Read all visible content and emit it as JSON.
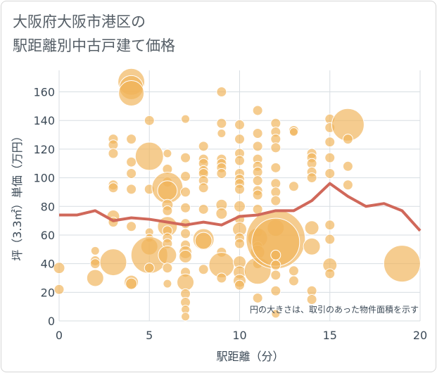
{
  "title_line1": "大阪府大阪市港区の",
  "title_line2": "駅距離別中古戸建て価格",
  "chart_data": {
    "type": "scatter",
    "xlabel": "駅距離（分）",
    "ylabel": "坪（3.3㎡）単価（万円）",
    "xlim": [
      0,
      20
    ],
    "ylim": [
      0,
      175
    ],
    "x_ticks": [
      0,
      5,
      10,
      15,
      20
    ],
    "y_ticks": [
      0,
      20,
      40,
      60,
      80,
      100,
      120,
      140,
      160
    ],
    "grid": true,
    "annotation": "円の大きさは、取引のあった物件面積を示す",
    "colors": {
      "bubble": "#f0b45a",
      "line": "#d0685a",
      "grid": "#d7dde2"
    },
    "bubbles": [
      {
        "x": 0,
        "y": 37,
        "s": 8
      },
      {
        "x": 0,
        "y": 22,
        "s": 7
      },
      {
        "x": 2,
        "y": 49,
        "s": 6
      },
      {
        "x": 2,
        "y": 42,
        "s": 7
      },
      {
        "x": 2,
        "y": 40,
        "s": 7
      },
      {
        "x": 2,
        "y": 30,
        "s": 12
      },
      {
        "x": 3,
        "y": 127,
        "s": 7
      },
      {
        "x": 3,
        "y": 123,
        "s": 7
      },
      {
        "x": 3,
        "y": 117,
        "s": 7
      },
      {
        "x": 3,
        "y": 95,
        "s": 7
      },
      {
        "x": 3,
        "y": 93,
        "s": 7
      },
      {
        "x": 3,
        "y": 73,
        "s": 9
      },
      {
        "x": 3,
        "y": 69,
        "s": 7
      },
      {
        "x": 3,
        "y": 41,
        "s": 19
      },
      {
        "x": 4,
        "y": 167,
        "s": 19
      },
      {
        "x": 4,
        "y": 163,
        "s": 17
      },
      {
        "x": 4,
        "y": 159,
        "s": 18
      },
      {
        "x": 4,
        "y": 127,
        "s": 7
      },
      {
        "x": 4,
        "y": 111,
        "s": 7
      },
      {
        "x": 4,
        "y": 103,
        "s": 7
      },
      {
        "x": 4,
        "y": 92,
        "s": 7
      },
      {
        "x": 4,
        "y": 66,
        "s": 7
      },
      {
        "x": 4,
        "y": 27,
        "s": 10
      },
      {
        "x": 4,
        "y": 26,
        "s": 8
      },
      {
        "x": 5,
        "y": 140,
        "s": 7
      },
      {
        "x": 5,
        "y": 115,
        "s": 20
      },
      {
        "x": 5,
        "y": 92,
        "s": 7
      },
      {
        "x": 5,
        "y": 62,
        "s": 6
      },
      {
        "x": 5,
        "y": 58,
        "s": 6
      },
      {
        "x": 5,
        "y": 52,
        "s": 12
      },
      {
        "x": 5,
        "y": 46,
        "s": 26
      },
      {
        "x": 5,
        "y": 37,
        "s": 7
      },
      {
        "x": 6,
        "y": 117,
        "s": 6
      },
      {
        "x": 6,
        "y": 106,
        "s": 7
      },
      {
        "x": 6,
        "y": 97,
        "s": 7
      },
      {
        "x": 6,
        "y": 93,
        "s": 22
      },
      {
        "x": 6,
        "y": 91,
        "s": 14
      },
      {
        "x": 6,
        "y": 81,
        "s": 8
      },
      {
        "x": 6,
        "y": 77,
        "s": 7
      },
      {
        "x": 6,
        "y": 66,
        "s": 14
      },
      {
        "x": 6,
        "y": 63,
        "s": 7
      },
      {
        "x": 6,
        "y": 58,
        "s": 7
      },
      {
        "x": 6,
        "y": 54,
        "s": 7
      },
      {
        "x": 6,
        "y": 46,
        "s": 13
      },
      {
        "x": 6,
        "y": 37,
        "s": 7
      },
      {
        "x": 6,
        "y": 26,
        "s": 6
      },
      {
        "x": 7,
        "y": 141,
        "s": 6
      },
      {
        "x": 7,
        "y": 114,
        "s": 7
      },
      {
        "x": 7,
        "y": 101,
        "s": 7
      },
      {
        "x": 7,
        "y": 90,
        "s": 7
      },
      {
        "x": 7,
        "y": 79,
        "s": 7
      },
      {
        "x": 7,
        "y": 68,
        "s": 7
      },
      {
        "x": 7,
        "y": 61,
        "s": 7
      },
      {
        "x": 7,
        "y": 53,
        "s": 7
      },
      {
        "x": 7,
        "y": 48,
        "s": 9
      },
      {
        "x": 7,
        "y": 45,
        "s": 9
      },
      {
        "x": 7,
        "y": 34,
        "s": 7
      },
      {
        "x": 7,
        "y": 27,
        "s": 12
      },
      {
        "x": 7,
        "y": 19,
        "s": 7
      },
      {
        "x": 7,
        "y": 13,
        "s": 7
      },
      {
        "x": 7,
        "y": 8,
        "s": 6
      },
      {
        "x": 7,
        "y": 3,
        "s": 6
      },
      {
        "x": 8,
        "y": 122,
        "s": 7
      },
      {
        "x": 8,
        "y": 113,
        "s": 7
      },
      {
        "x": 8,
        "y": 110,
        "s": 7
      },
      {
        "x": 8,
        "y": 105,
        "s": 7
      },
      {
        "x": 8,
        "y": 103,
        "s": 7
      },
      {
        "x": 8,
        "y": 98,
        "s": 7
      },
      {
        "x": 8,
        "y": 93,
        "s": 7
      },
      {
        "x": 8,
        "y": 78,
        "s": 7
      },
      {
        "x": 8,
        "y": 57,
        "s": 15
      },
      {
        "x": 8,
        "y": 56,
        "s": 12
      },
      {
        "x": 8,
        "y": 36,
        "s": 7
      },
      {
        "x": 9,
        "y": 160,
        "s": 7
      },
      {
        "x": 9,
        "y": 138,
        "s": 7
      },
      {
        "x": 9,
        "y": 131,
        "s": 6
      },
      {
        "x": 9,
        "y": 113,
        "s": 7
      },
      {
        "x": 9,
        "y": 110,
        "s": 7
      },
      {
        "x": 9,
        "y": 107,
        "s": 7
      },
      {
        "x": 9,
        "y": 103,
        "s": 7
      },
      {
        "x": 9,
        "y": 81,
        "s": 8
      },
      {
        "x": 9,
        "y": 75,
        "s": 8
      },
      {
        "x": 9,
        "y": 48,
        "s": 7
      },
      {
        "x": 9,
        "y": 39,
        "s": 18
      },
      {
        "x": 9,
        "y": 30,
        "s": 7
      },
      {
        "x": 10,
        "y": 137,
        "s": 7
      },
      {
        "x": 10,
        "y": 127,
        "s": 7
      },
      {
        "x": 10,
        "y": 117,
        "s": 7
      },
      {
        "x": 10,
        "y": 112,
        "s": 7
      },
      {
        "x": 10,
        "y": 103,
        "s": 7
      },
      {
        "x": 10,
        "y": 99,
        "s": 7
      },
      {
        "x": 10,
        "y": 96,
        "s": 7
      },
      {
        "x": 10,
        "y": 92,
        "s": 7
      },
      {
        "x": 10,
        "y": 80,
        "s": 8
      },
      {
        "x": 10,
        "y": 71,
        "s": 7
      },
      {
        "x": 10,
        "y": 64,
        "s": 10
      },
      {
        "x": 10,
        "y": 58,
        "s": 7
      },
      {
        "x": 10,
        "y": 54,
        "s": 7
      },
      {
        "x": 10,
        "y": 41,
        "s": 9
      },
      {
        "x": 10,
        "y": 34,
        "s": 9
      },
      {
        "x": 10,
        "y": 28,
        "s": 9
      },
      {
        "x": 10,
        "y": 25,
        "s": 7
      },
      {
        "x": 11,
        "y": 147,
        "s": 7
      },
      {
        "x": 11,
        "y": 131,
        "s": 7
      },
      {
        "x": 11,
        "y": 122,
        "s": 7
      },
      {
        "x": 11,
        "y": 113,
        "s": 7
      },
      {
        "x": 11,
        "y": 108,
        "s": 7
      },
      {
        "x": 11,
        "y": 104,
        "s": 7
      },
      {
        "x": 11,
        "y": 98,
        "s": 7
      },
      {
        "x": 11,
        "y": 91,
        "s": 7
      },
      {
        "x": 11,
        "y": 88,
        "s": 7
      },
      {
        "x": 11,
        "y": 78,
        "s": 7
      },
      {
        "x": 11,
        "y": 62,
        "s": 7
      },
      {
        "x": 11,
        "y": 58,
        "s": 14
      },
      {
        "x": 11,
        "y": 52,
        "s": 7
      },
      {
        "x": 11,
        "y": 48,
        "s": 10
      },
      {
        "x": 11,
        "y": 40,
        "s": 7
      },
      {
        "x": 11,
        "y": 35,
        "s": 19
      },
      {
        "x": 11,
        "y": 16,
        "s": 7
      },
      {
        "x": 12,
        "y": 138,
        "s": 7
      },
      {
        "x": 12,
        "y": 132,
        "s": 7
      },
      {
        "x": 12,
        "y": 127,
        "s": 7
      },
      {
        "x": 12,
        "y": 121,
        "s": 7
      },
      {
        "x": 12,
        "y": 107,
        "s": 7
      },
      {
        "x": 12,
        "y": 96,
        "s": 7
      },
      {
        "x": 12,
        "y": 90,
        "s": 7
      },
      {
        "x": 12,
        "y": 84,
        "s": 7
      },
      {
        "x": 12,
        "y": 65,
        "s": 12
      },
      {
        "x": 12,
        "y": 57,
        "s": 42
      },
      {
        "x": 12,
        "y": 55,
        "s": 34
      },
      {
        "x": 12,
        "y": 46,
        "s": 7
      },
      {
        "x": 12,
        "y": 39,
        "s": 7
      },
      {
        "x": 12,
        "y": 32,
        "s": 7
      },
      {
        "x": 12,
        "y": 21,
        "s": 7
      },
      {
        "x": 12,
        "y": 5,
        "s": 6
      },
      {
        "x": 13,
        "y": 133,
        "s": 7
      },
      {
        "x": 13,
        "y": 132,
        "s": 6
      },
      {
        "x": 13,
        "y": 94,
        "s": 7
      },
      {
        "x": 13,
        "y": 35,
        "s": 7
      },
      {
        "x": 13,
        "y": 28,
        "s": 7
      },
      {
        "x": 14,
        "y": 117,
        "s": 7
      },
      {
        "x": 14,
        "y": 114,
        "s": 7
      },
      {
        "x": 14,
        "y": 110,
        "s": 7
      },
      {
        "x": 14,
        "y": 104,
        "s": 7
      },
      {
        "x": 14,
        "y": 100,
        "s": 7
      },
      {
        "x": 14,
        "y": 65,
        "s": 10
      },
      {
        "x": 14,
        "y": 52,
        "s": 12
      },
      {
        "x": 14,
        "y": 21,
        "s": 7
      },
      {
        "x": 14,
        "y": 15,
        "s": 7
      },
      {
        "x": 15,
        "y": 141,
        "s": 7
      },
      {
        "x": 15,
        "y": 135,
        "s": 7
      },
      {
        "x": 15,
        "y": 125,
        "s": 7
      },
      {
        "x": 15,
        "y": 114,
        "s": 7
      },
      {
        "x": 15,
        "y": 103,
        "s": 7
      },
      {
        "x": 15,
        "y": 67,
        "s": 7
      },
      {
        "x": 15,
        "y": 57,
        "s": 7
      },
      {
        "x": 15,
        "y": 39,
        "s": 10
      },
      {
        "x": 15,
        "y": 33,
        "s": 7
      },
      {
        "x": 16,
        "y": 137,
        "s": 23
      },
      {
        "x": 16,
        "y": 127,
        "s": 7
      },
      {
        "x": 16,
        "y": 108,
        "s": 7
      },
      {
        "x": 16,
        "y": 95,
        "s": 7
      },
      {
        "x": 19,
        "y": 40,
        "s": 26
      }
    ],
    "line": {
      "x": [
        0,
        1,
        2,
        3,
        4,
        5,
        6,
        7,
        8,
        9,
        10,
        11,
        12,
        13,
        14,
        15,
        16,
        17,
        18,
        19,
        20
      ],
      "y": [
        74,
        74,
        77,
        70,
        72,
        71,
        69,
        67,
        69,
        67,
        73,
        74,
        77,
        77,
        84,
        96,
        87,
        80,
        82,
        77,
        63
      ]
    }
  }
}
